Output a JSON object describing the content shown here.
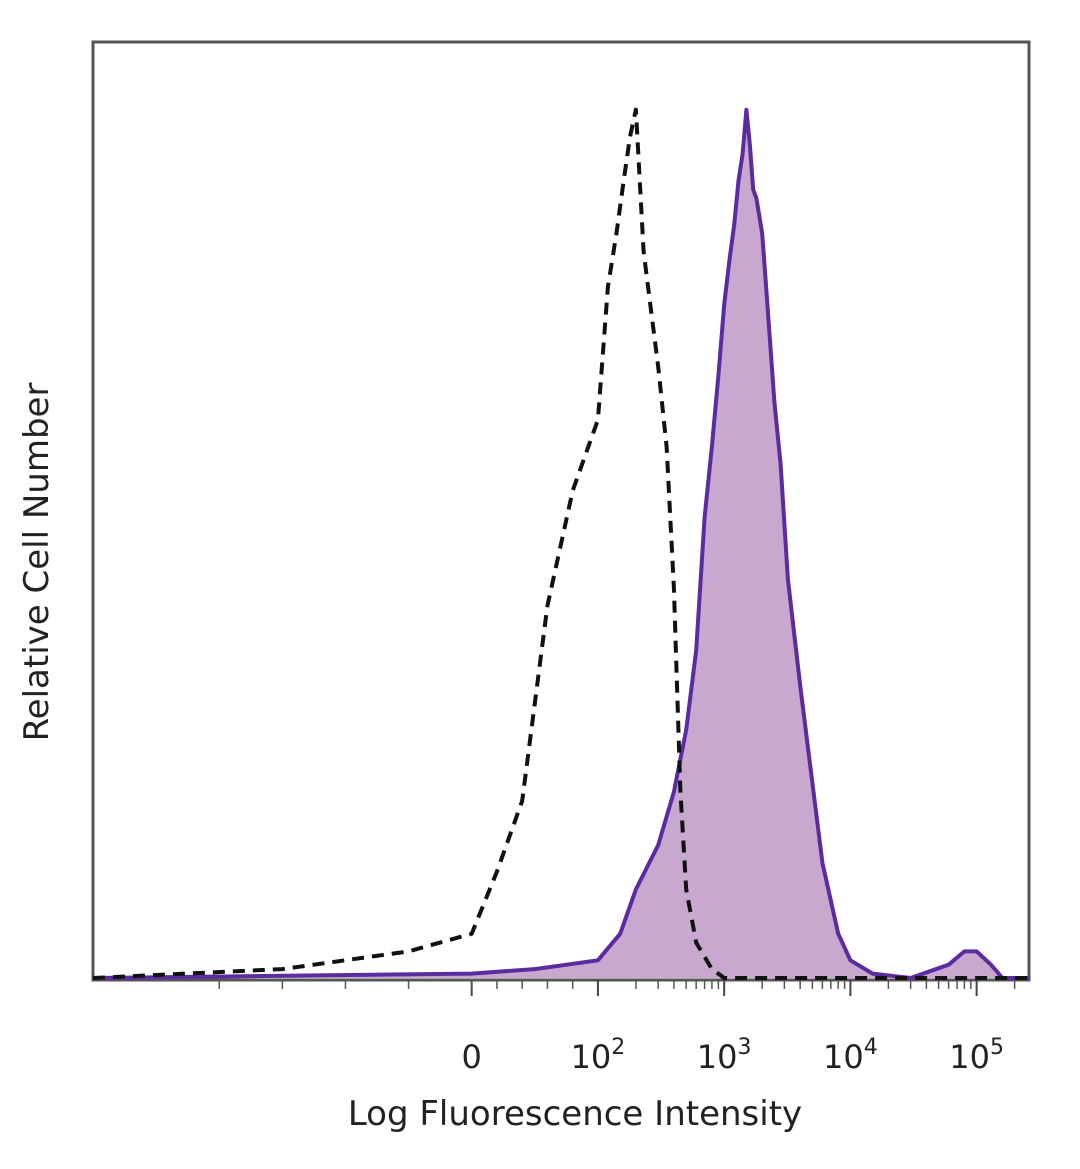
{
  "chart_data": {
    "type": "area",
    "title": "",
    "xlabel": "Log Fluorescence Intensity",
    "ylabel": "Relative Cell Number",
    "x_scale": "biexponential",
    "xlim": [
      -300,
      260000
    ],
    "ylim": [
      0,
      100
    ],
    "grid": false,
    "legend": "none",
    "x_ticks": [
      {
        "value": 0,
        "base": "0",
        "exp": ""
      },
      {
        "value": 100,
        "base": "10",
        "exp": "2"
      },
      {
        "value": 1000,
        "base": "10",
        "exp": "3"
      },
      {
        "value": 10000,
        "base": "10",
        "exp": "4"
      },
      {
        "value": 100000,
        "base": "10",
        "exp": "5"
      }
    ],
    "series": [
      {
        "style": "dashed-outline",
        "color": "#111111",
        "x": [
          -300,
          -150,
          -50,
          0,
          20,
          40,
          60,
          80,
          100,
          120,
          140,
          160,
          180,
          200,
          230,
          260,
          300,
          350,
          400,
          450,
          500,
          600,
          800,
          1000,
          3000,
          10000,
          260000
        ],
        "y": [
          0,
          1,
          3,
          5,
          12,
          20,
          42,
          55,
          63,
          78,
          84,
          90,
          95,
          98,
          82,
          76,
          69,
          60,
          44,
          21,
          10,
          4,
          1,
          0,
          0,
          0,
          0
        ]
      },
      {
        "style": "filled",
        "color": "#5b2c9f",
        "fill": "#c8a8cf",
        "x": [
          -300,
          0,
          50,
          100,
          150,
          200,
          300,
          400,
          500,
          600,
          700,
          800,
          900,
          1000,
          1100,
          1200,
          1300,
          1400,
          1500,
          1600,
          1700,
          1800,
          2000,
          2200,
          2500,
          2800,
          3200,
          4000,
          5000,
          6000,
          8000,
          10000,
          15000,
          30000,
          60000,
          80000,
          100000,
          130000,
          160000,
          260000
        ],
        "y": [
          0,
          0.5,
          1,
          2,
          5,
          10,
          15,
          21,
          28,
          37,
          52,
          60,
          68,
          76,
          81,
          85,
          90,
          93,
          98,
          94,
          89,
          88,
          84,
          76,
          65,
          58,
          45,
          33,
          22,
          13,
          5,
          2,
          0.5,
          0,
          1.5,
          3,
          3,
          1.5,
          0,
          0
        ]
      }
    ]
  }
}
